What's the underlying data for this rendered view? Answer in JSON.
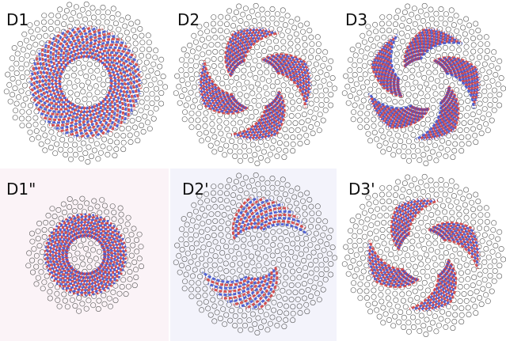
{
  "panels": [
    {
      "label": "D1"
    },
    {
      "label": "D2"
    },
    {
      "label": "D3"
    },
    {
      "label": "D1\""
    },
    {
      "label": "D2'"
    },
    {
      "label": "D3'"
    }
  ]
}
